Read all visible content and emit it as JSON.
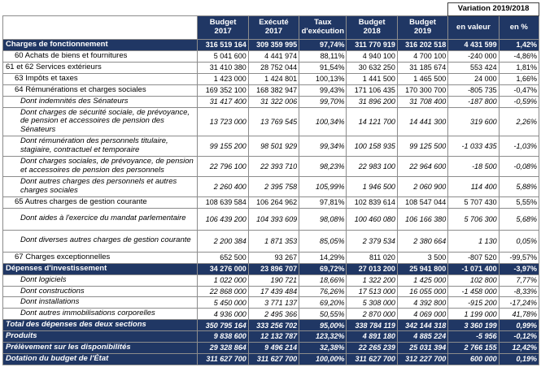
{
  "colors": {
    "header_bg": "#203764",
    "header_text": "#ffffff",
    "grid_line": "#8c8c8c"
  },
  "table": {
    "variation_header": "Variation 2019/2018",
    "columns": [
      "Budget\n2017",
      "Exécuté\n2017",
      "Taux\nd'exécution",
      "Budget\n2018",
      "Budget\n2019",
      "en valeur",
      "en %"
    ],
    "rows": [
      {
        "label": "Charges de fonctionnement",
        "style": "section",
        "indent": 0,
        "tall": false,
        "values": [
          "316 519 164",
          "309 359 995",
          "97,74%",
          "311 770 919",
          "316 202 518",
          "4 431 599",
          "1,42%"
        ]
      },
      {
        "label": "60 Achats de biens et fournitures",
        "style": "item",
        "indent": 1,
        "tall": false,
        "values": [
          "5 041 600",
          "4 441 974",
          "88,11%",
          "4 940 100",
          "4 700 100",
          "-240 000",
          "-4,86%"
        ]
      },
      {
        "label": "61 et 62 Services extérieurs",
        "style": "item",
        "indent": 0,
        "tall": false,
        "values": [
          "31 410 380",
          "28 752 044",
          "91,54%",
          "30 632 250",
          "31 185 674",
          "553 424",
          "1,81%"
        ]
      },
      {
        "label": "63 Impôts et taxes",
        "style": "item",
        "indent": 1,
        "tall": false,
        "values": [
          "1 423 000",
          "1 424 801",
          "100,13%",
          "1 441 500",
          "1 465 500",
          "24 000",
          "1,66%"
        ]
      },
      {
        "label": "64 Rémunérations et charges sociales",
        "style": "item",
        "indent": 1,
        "tall": false,
        "values": [
          "169 352 100",
          "168 382 947",
          "99,43%",
          "171 106 435",
          "170 300 700",
          "-805 735",
          "-0,47%"
        ]
      },
      {
        "label": "Dont indemnités des Sénateurs",
        "style": "dont",
        "indent": 2,
        "tall": false,
        "values": [
          "31 417 400",
          "31 322 006",
          "99,70%",
          "31 896 200",
          "31 708 400",
          "-187 800",
          "-0,59%"
        ]
      },
      {
        "label": "Dont charges de sécurité sociale, de prévoyance, de pension et accessoires de pension des Sénateurs",
        "style": "dont",
        "indent": 2,
        "tall": false,
        "values": [
          "13 723 000",
          "13 769 545",
          "100,34%",
          "14 121 700",
          "14 441 300",
          "319 600",
          "2,26%"
        ]
      },
      {
        "label": "Dont rémunération des personnels titulaire, stagiaire, contractuel et temporaire",
        "style": "dont",
        "indent": 2,
        "tall": false,
        "values": [
          "99 155 200",
          "98 501 929",
          "99,34%",
          "100 158 935",
          "99 125 500",
          "-1 033 435",
          "-1,03%"
        ]
      },
      {
        "label": "Dont charges sociales, de prévoyance, de pension et accessoires de pension des personnels",
        "style": "dont",
        "indent": 2,
        "tall": false,
        "values": [
          "22 796 100",
          "22 393 710",
          "98,23%",
          "22 983 100",
          "22 964 600",
          "-18 500",
          "-0,08%"
        ]
      },
      {
        "label": "Dont autres charges des personnels et autres charges sociales",
        "style": "dont",
        "indent": 2,
        "tall": false,
        "values": [
          "2 260 400",
          "2 395 758",
          "105,99%",
          "1 946 500",
          "2 060 900",
          "114 400",
          "5,88%"
        ]
      },
      {
        "label": "65 Autres charges de gestion courante",
        "style": "item",
        "indent": 1,
        "tall": false,
        "values": [
          "108 639 584",
          "106 264 962",
          "97,81%",
          "102 839 614",
          "108 547 044",
          "5 707 430",
          "5,55%"
        ]
      },
      {
        "label": "Dont aides à l'exercice du mandat parlementaire",
        "style": "dont",
        "indent": 2,
        "tall": true,
        "values": [
          "106 439 200",
          "104 393 609",
          "98,08%",
          "100 460 080",
          "106 166 380",
          "5 706 300",
          "5,68%"
        ]
      },
      {
        "label": "Dont diverses autres charges de gestion courante",
        "style": "dont",
        "indent": 2,
        "tall": true,
        "values": [
          "2 200 384",
          "1 871 353",
          "85,05%",
          "2 379 534",
          "2 380 664",
          "1 130",
          "0,05%"
        ]
      },
      {
        "label": "67 Charges exceptionnelles",
        "style": "item",
        "indent": 1,
        "tall": false,
        "values": [
          "652 500",
          "93 267",
          "14,29%",
          "811 020",
          "3 500",
          "-807 520",
          "-99,57%"
        ]
      },
      {
        "label": "Dépenses d'investissement",
        "style": "section",
        "indent": 0,
        "tall": false,
        "values": [
          "34 276 000",
          "23 896 707",
          "69,72%",
          "27 013 200",
          "25 941 800",
          "-1 071 400",
          "-3,97%"
        ]
      },
      {
        "label": "Dont logiciels",
        "style": "dont",
        "indent": 2,
        "tall": false,
        "values": [
          "1 022 000",
          "190 721",
          "18,66%",
          "1 322 200",
          "1 425 000",
          "102 800",
          "7,77%"
        ]
      },
      {
        "label": "Dont constructions",
        "style": "dont",
        "indent": 2,
        "tall": false,
        "values": [
          "22 868 000",
          "17 439 484",
          "76,26%",
          "17 513 000",
          "16 055 000",
          "-1 458 000",
          "-8,33%"
        ]
      },
      {
        "label": "Dont installations",
        "style": "dont",
        "indent": 2,
        "tall": false,
        "values": [
          "5 450 000",
          "3 771 137",
          "69,20%",
          "5 308 000",
          "4 392 800",
          "-915 200",
          "-17,24%"
        ]
      },
      {
        "label": "Dont autres immobilisations corporelles",
        "style": "dont",
        "indent": 2,
        "tall": false,
        "values": [
          "4 936 000",
          "2 495 366",
          "50,55%",
          "2 870 000",
          "4 069 000",
          "1 199 000",
          "41,78%"
        ]
      },
      {
        "label": "Total des dépenses des deux sections",
        "style": "total",
        "indent": 0,
        "tall": false,
        "values": [
          "350 795 164",
          "333 256 702",
          "95,00%",
          "338 784 119",
          "342 144 318",
          "3 360 199",
          "0,99%"
        ]
      },
      {
        "label": "Produits",
        "style": "total",
        "indent": 0,
        "tall": false,
        "values": [
          "9 838 600",
          "12 132 787",
          "123,32%",
          "4 891 180",
          "4 885 224",
          "-5 956",
          "-0,12%"
        ]
      },
      {
        "label": "Prélèvement sur les disponibilités",
        "style": "total",
        "indent": 0,
        "tall": false,
        "values": [
          "29 328 864",
          "9 496 214",
          "32,38%",
          "22 265 239",
          "25 031 394",
          "2 766 155",
          "12,42%"
        ]
      },
      {
        "label": "Dotation du budget de l'État",
        "style": "total",
        "indent": 0,
        "tall": false,
        "values": [
          "311 627 700",
          "311 627 700",
          "100,00%",
          "311 627 700",
          "312 227 700",
          "600 000",
          "0,19%"
        ]
      }
    ]
  }
}
